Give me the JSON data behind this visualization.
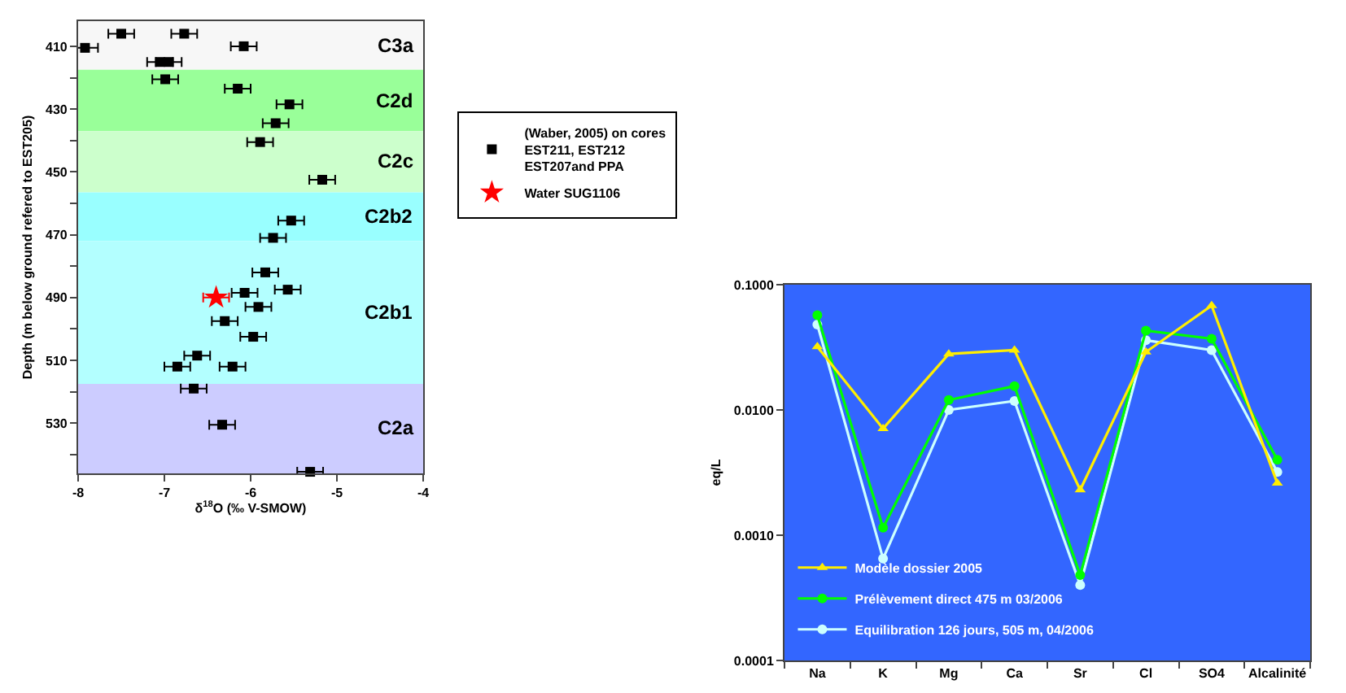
{
  "chart_data": [
    {
      "type": "scatter",
      "xlabel": "δ$^{18}$O (‰ V-SMOW)",
      "ylabel": "Depth (m below ground refered to EST205)",
      "xlim": [
        -8,
        -4
      ],
      "xticks": [
        -8,
        -7,
        -6,
        -5,
        -4
      ],
      "ylim": [
        546,
        402
      ],
      "yticks": [
        410,
        {
          "value": 420,
          "label": null
        },
        430,
        {
          "value": 440,
          "label": null
        },
        450,
        {
          "value": 460,
          "label": null
        },
        470,
        {
          "value": 480,
          "label": null
        },
        490,
        {
          "value": 500,
          "label": null
        },
        510,
        {
          "value": 520,
          "label": null
        },
        530,
        {
          "value": 540,
          "label": null
        }
      ],
      "grid": false,
      "legend": "right",
      "bands": [
        {
          "axis": "y",
          "from": 402,
          "to": 417.5,
          "label": "C3a",
          "color": "#f7f7f7"
        },
        {
          "axis": "y",
          "from": 417.5,
          "to": 437,
          "label": "C2d",
          "color": "#99ff99"
        },
        {
          "axis": "y",
          "from": 437,
          "to": 456.5,
          "label": "C2c",
          "color": "#ccffcc"
        },
        {
          "axis": "y",
          "from": 456.5,
          "to": 472,
          "label": "C2b2",
          "color": "#99ffff"
        },
        {
          "axis": "y",
          "from": 472,
          "to": 517.5,
          "label": "C2b1",
          "color": "#b3ffff"
        },
        {
          "axis": "y",
          "from": 517.5,
          "to": 546,
          "label": "C2a",
          "color": "#ccccff"
        }
      ],
      "series": [
        {
          "name": "(Waber, 2005) on cores EST211, EST212 EST207and PPA",
          "color": "#000000",
          "marker": "square",
          "x": [
            -7.5,
            -6.77,
            -7.92,
            -6.08,
            -7.05,
            -6.95,
            -6.99,
            -6.15,
            -5.55,
            -5.71,
            -5.89,
            -5.17,
            -5.53,
            -5.74,
            -5.83,
            -5.57,
            -6.07,
            -5.91,
            -6.3,
            -5.97,
            -6.62,
            -6.85,
            -6.21,
            -6.66,
            -6.33,
            -5.31
          ],
          "values": [
            406,
            406,
            410.5,
            410,
            415,
            415,
            420.5,
            423.5,
            428.5,
            434.5,
            440.5,
            452.5,
            465.5,
            471,
            482,
            487.5,
            488.5,
            493,
            497.5,
            502.5,
            508.5,
            512,
            512,
            519,
            530.5,
            545.5
          ],
          "xerrors": [
            0.15,
            0.15,
            0.15,
            0.15,
            0.15,
            0.15,
            0.15,
            0.15,
            0.15,
            0.15,
            0.15,
            0.15,
            0.15,
            0.15,
            0.15,
            0.15,
            0.15,
            0.15,
            0.15,
            0.15,
            0.15,
            0.15,
            0.15,
            0.15,
            0.15,
            0.15
          ]
        },
        {
          "name": "Water SUG1106",
          "color": "#ff0000",
          "marker": "star",
          "x": [
            -6.4
          ],
          "values": [
            490
          ],
          "xerrors": [
            0.15
          ]
        }
      ]
    },
    {
      "type": "line",
      "ylabel": "eq/L",
      "categories": [
        "Na",
        "K",
        "Mg",
        "Ca",
        "Sr",
        "Cl",
        "SO4",
        "Alcalinité"
      ],
      "log": "y",
      "ylim": [
        0.0001,
        0.1
      ],
      "yticks": [
        {
          "value": 0.0001,
          "label": "0.0001"
        },
        {
          "value": 0.001,
          "label": "0.0010"
        },
        {
          "value": 0.01,
          "label": "0.0100"
        },
        {
          "value": 0.1,
          "label": "0.1000"
        }
      ],
      "grid": false,
      "legend": "bottom left",
      "series": [
        {
          "name": "Modèle dossier 2005",
          "color": "#ffee00",
          "marker": "triangle",
          "values": [
            0.032,
            0.0071,
            0.028,
            0.03,
            0.0023,
            0.029,
            0.068,
            0.0026
          ]
        },
        {
          "name": "Prélèvement direct 475 m 03/2006",
          "color": "#00ff00",
          "marker": "circle",
          "values": [
            0.057,
            0.00115,
            0.012,
            0.0155,
            0.00048,
            0.043,
            0.037,
            0.004
          ]
        },
        {
          "name": "Equilibration 126 jours, 505 m, 04/2006",
          "color": "#ccffff",
          "marker": "circle",
          "values": [
            0.048,
            0.00065,
            0.01,
            0.0118,
            0.0004,
            0.036,
            0.03,
            0.0032
          ]
        }
      ]
    }
  ]
}
